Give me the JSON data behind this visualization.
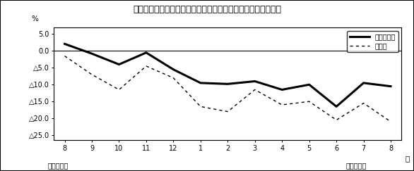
{
  "title": "第２図　所定外労働時間対前年同月比の推移（規模５人以上）",
  "xlabel_right": "月",
  "ylabel": "%",
  "x_labels": [
    "8",
    "9",
    "10",
    "11",
    "12",
    "1",
    "2",
    "3",
    "4",
    "5",
    "6",
    "7",
    "8"
  ],
  "x_bottom_left": "平成１９年",
  "x_bottom_right": "平成２０年",
  "legend_line1": "調査産業計",
  "legend_line2": "製造業",
  "y_all": [
    2.1,
    -0.8,
    -4.0,
    -0.5,
    -5.5,
    -9.5,
    -9.8,
    -9.0,
    -11.5,
    -10.0,
    -16.5,
    -9.5,
    -10.5
  ],
  "y_mfg": [
    -1.5,
    -7.0,
    -11.5,
    -4.5,
    -8.0,
    -16.5,
    -18.0,
    -11.5,
    -16.0,
    -15.0,
    -20.5,
    -15.5,
    -21.0
  ],
  "line_color_all": "#000000",
  "line_color_mfg": "#000000",
  "background_color": "#ffffff",
  "ytick_vals": [
    5.0,
    0.0,
    -5.0,
    -10.0,
    -15.0,
    -20.0,
    -25.0
  ],
  "ylim": [
    -26.5,
    7.0
  ],
  "xlim": [
    -0.4,
    12.4
  ]
}
